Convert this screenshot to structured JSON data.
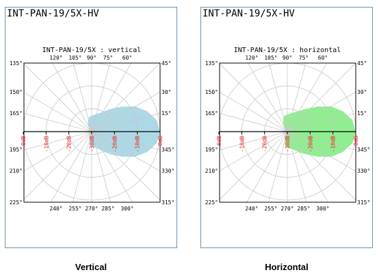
{
  "captions": {
    "left": "Vertical",
    "right": "Horizontal"
  },
  "chart_data": [
    {
      "type": "polar",
      "header": "INT-PAN-19/5X-HV",
      "title": "INT-PAN-19/5X : vertical",
      "caption": "Vertical",
      "fill_color": "#add8e6",
      "angle_labels_top": [
        "120°",
        "105°",
        "90°",
        "75°",
        "60°"
      ],
      "angle_labels_left": [
        "135°",
        "150°",
        "165°",
        "195°",
        "210°",
        "225°"
      ],
      "angle_labels_right": [
        "45°",
        "30°",
        "15°",
        "345°",
        "330°",
        "315°"
      ],
      "angle_labels_bottom": [
        "240°",
        "255°",
        "270°",
        "285°",
        "300°"
      ],
      "db_labels": [
        "0dB",
        "-10dB",
        "-20dB",
        "-30dB",
        "-20dB",
        "-10dB",
        "0dB"
      ],
      "pattern": {
        "angles_deg": [
          0,
          10,
          20,
          30,
          40,
          50,
          60,
          70,
          80,
          90,
          100,
          110,
          120,
          130,
          140,
          150,
          160,
          170,
          180,
          190,
          200,
          210,
          220,
          230,
          240,
          250,
          260,
          270,
          280,
          290,
          300,
          310,
          320,
          330,
          340,
          350
        ],
        "level_db": [
          0,
          -1,
          -4,
          -8,
          -13,
          -17,
          -20,
          -21.5,
          -22.5,
          -23,
          -23.5,
          -25,
          -27,
          -28.5,
          -29.5,
          -30,
          -30,
          -30,
          -30,
          -30,
          -30,
          -30,
          -30,
          -29.5,
          -28.5,
          -27,
          -25,
          -23.5,
          -23,
          -22,
          -20,
          -17,
          -13,
          -8,
          -4,
          -1
        ]
      }
    },
    {
      "type": "polar",
      "header": "INT-PAN-19/5X-HV",
      "title": "INT-PAN-19/5X : horizontal",
      "caption": "Horizontal",
      "fill_color": "#90ee90",
      "angle_labels_top": [
        "120°",
        "105°",
        "90°",
        "75°",
        "60°"
      ],
      "angle_labels_left": [
        "135°",
        "150°",
        "165°",
        "195°",
        "210°",
        "225°"
      ],
      "angle_labels_right": [
        "45°",
        "30°",
        "15°",
        "345°",
        "330°",
        "315°"
      ],
      "angle_labels_bottom": [
        "240°",
        "255°",
        "270°",
        "285°",
        "300°"
      ],
      "db_labels": [
        "0dB",
        "-10dB",
        "-20dB",
        "-30dB",
        "-20dB",
        "-10dB",
        "0dB"
      ],
      "pattern": {
        "angles_deg": [
          0,
          10,
          20,
          30,
          40,
          50,
          60,
          70,
          80,
          90,
          100,
          110,
          120,
          130,
          140,
          150,
          160,
          170,
          180,
          190,
          200,
          210,
          220,
          230,
          240,
          250,
          260,
          270,
          280,
          290,
          300,
          310,
          320,
          330,
          340,
          350
        ],
        "level_db": [
          0,
          -1,
          -4,
          -8,
          -13,
          -17,
          -19.5,
          -21,
          -22,
          -22.5,
          -23,
          -24.5,
          -26.5,
          -28,
          -29.5,
          -30,
          -30,
          -30,
          -30,
          -30,
          -30,
          -30,
          -30,
          -29.5,
          -28,
          -26.5,
          -24.5,
          -23,
          -22.5,
          -21.5,
          -19.5,
          -17,
          -13,
          -8,
          -4,
          -1
        ]
      }
    }
  ]
}
